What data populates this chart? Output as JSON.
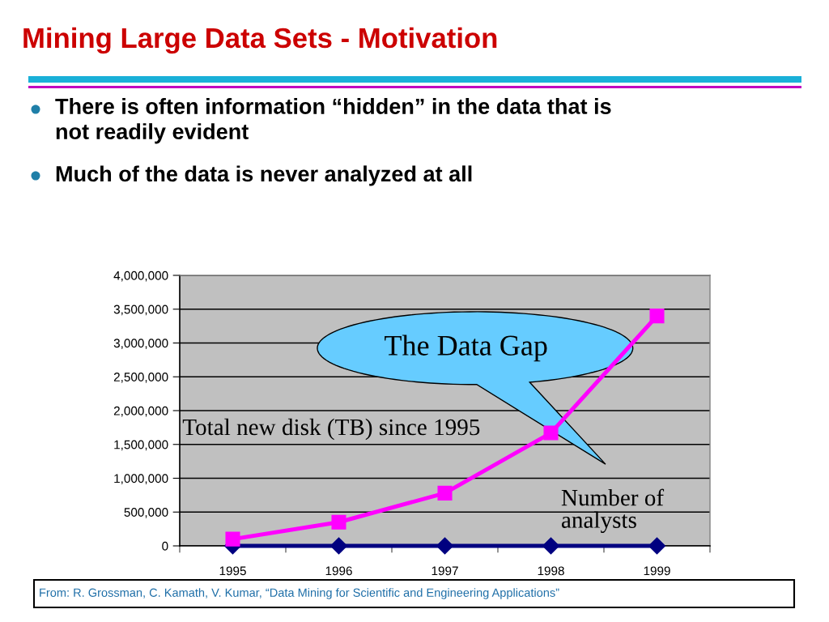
{
  "chart_data": {
    "type": "line",
    "title": "Mining Large Data Sets - Motivation",
    "categories": [
      "1995",
      "1996",
      "1997",
      "1998",
      "1999"
    ],
    "series": [
      {
        "name": "Total new disk (TB) since 1995",
        "color": "#ff00ff",
        "marker": "square",
        "values": [
          100000,
          350000,
          780000,
          1670000,
          3400000
        ]
      },
      {
        "name": "Number of\nanalysts",
        "color": "#000080",
        "marker": "diamond",
        "values": [
          0,
          0,
          0,
          0,
          0
        ]
      }
    ],
    "ylim": [
      0,
      4000000
    ],
    "yticks": [
      0,
      {
        "value": 500000,
        "label": "500,000"
      },
      {
        "value": 1000000,
        "label": "1,000,000"
      },
      {
        "value": 1500000,
        "label": "1,500,000"
      },
      {
        "value": 2000000,
        "label": "2,000,000"
      },
      {
        "value": 2500000,
        "label": "2,500,000"
      },
      {
        "value": 3000000,
        "label": "3,000,000"
      },
      {
        "value": 3500000,
        "label": "3,500,000"
      },
      {
        "value": 4000000,
        "label": "4,000,000"
      }
    ],
    "grid": "y",
    "annotations": [
      "There is often information “hidden” in the data that is\nnot readily evident",
      "Much of the data is never analyzed at all",
      "The Data Gap",
      "From: R. Grossman, C. Kamath, V. Kumar, “Data Mining for Scientific and Engineering Applications”"
    ]
  }
}
